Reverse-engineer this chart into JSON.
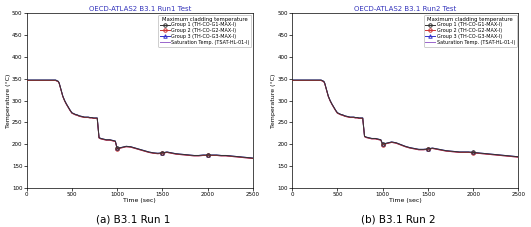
{
  "title1": "OECD-ATLAS2 B3.1 Run1 Test",
  "title2": "OECD-ATLAS2 B3.1 Run2 Test",
  "caption1": "(a) B3.1 Run 1",
  "caption2": "(b) B3.1 Run 2",
  "xlabel": "Time (sec)",
  "ylabel": "Temperature (°C)",
  "title_color": "#3333bb",
  "xlim": [
    0,
    2500
  ],
  "ylim": [
    100,
    500
  ],
  "yticks": [
    100,
    150,
    200,
    250,
    300,
    350,
    400,
    450,
    500
  ],
  "xticks": [
    0,
    500,
    1000,
    1500,
    2000,
    2500
  ],
  "legend_title": "Maximum cladding temperature",
  "background_color": "#ffffff",
  "linewidth": 0.7,
  "markersize": 2.5,
  "run1": {
    "time": [
      0,
      10,
      20,
      30,
      40,
      50,
      60,
      70,
      80,
      100,
      150,
      200,
      250,
      300,
      310,
      320,
      330,
      340,
      350,
      360,
      380,
      400,
      420,
      440,
      460,
      480,
      500,
      520,
      540,
      560,
      580,
      600,
      620,
      640,
      660,
      680,
      700,
      720,
      740,
      760,
      780,
      800,
      820,
      840,
      860,
      880,
      900,
      920,
      940,
      960,
      980,
      1000,
      1020,
      1040,
      1060,
      1080,
      1100,
      1150,
      1200,
      1250,
      1300,
      1350,
      1400,
      1450,
      1500,
      1550,
      1600,
      1650,
      1700,
      1750,
      1800,
      1850,
      1900,
      1950,
      2000,
      2050,
      2100,
      2150,
      2200,
      2250,
      2300,
      2350,
      2400,
      2450,
      2500
    ],
    "group1": [
      347,
      347,
      347,
      347,
      347,
      347,
      347,
      347,
      347,
      347,
      347,
      347,
      347,
      347,
      347,
      347,
      346,
      345,
      344,
      340,
      325,
      310,
      300,
      292,
      285,
      278,
      272,
      270,
      268,
      267,
      265,
      264,
      263,
      262,
      262,
      262,
      261,
      261,
      260,
      260,
      260,
      215,
      213,
      212,
      211,
      210,
      210,
      210,
      209,
      208,
      207,
      190,
      191,
      192,
      193,
      194,
      195,
      194,
      191,
      188,
      185,
      182,
      180,
      179,
      180,
      182,
      180,
      178,
      177,
      176,
      175,
      174,
      174,
      175,
      175,
      175,
      175,
      174,
      174,
      173,
      172,
      171,
      170,
      169,
      168
    ],
    "group2": [
      346,
      346,
      346,
      346,
      346,
      346,
      346,
      346,
      346,
      346,
      346,
      346,
      346,
      346,
      346,
      346,
      345,
      344,
      343,
      339,
      324,
      309,
      299,
      291,
      284,
      277,
      271,
      269,
      267,
      266,
      264,
      263,
      262,
      261,
      261,
      261,
      260,
      260,
      259,
      259,
      259,
      214,
      212,
      211,
      210,
      209,
      209,
      209,
      208,
      207,
      206,
      189,
      190,
      191,
      192,
      193,
      194,
      193,
      190,
      187,
      184,
      181,
      179,
      178,
      179,
      181,
      179,
      177,
      176,
      175,
      174,
      173,
      173,
      174,
      174,
      174,
      174,
      173,
      173,
      172,
      171,
      170,
      169,
      168,
      167
    ],
    "group3": [
      347,
      347,
      347,
      347,
      347,
      347,
      347,
      347,
      347,
      347,
      347,
      347,
      347,
      347,
      347,
      347,
      346,
      345,
      344,
      340,
      325,
      310,
      300,
      292,
      285,
      278,
      272,
      270,
      268,
      267,
      265,
      264,
      263,
      262,
      262,
      262,
      261,
      261,
      260,
      260,
      260,
      215,
      213,
      212,
      211,
      210,
      210,
      210,
      209,
      208,
      207,
      190,
      191,
      192,
      193,
      194,
      195,
      194,
      191,
      188,
      185,
      182,
      180,
      179,
      180,
      182,
      180,
      178,
      177,
      176,
      175,
      174,
      174,
      175,
      175,
      175,
      175,
      174,
      174,
      173,
      172,
      171,
      170,
      169,
      168
    ],
    "sat": [
      346,
      346,
      346,
      346,
      346,
      346,
      346,
      346,
      346,
      346,
      346,
      346,
      346,
      346,
      346,
      346,
      345,
      344,
      343,
      339,
      324,
      309,
      299,
      291,
      284,
      277,
      271,
      269,
      267,
      266,
      264,
      263,
      262,
      261,
      261,
      261,
      260,
      260,
      259,
      259,
      259,
      214,
      212,
      211,
      210,
      209,
      209,
      209,
      208,
      207,
      206,
      189,
      190,
      191,
      192,
      193,
      194,
      193,
      190,
      187,
      184,
      181,
      179,
      178,
      179,
      181,
      179,
      177,
      176,
      175,
      174,
      173,
      173,
      174,
      174,
      174,
      174,
      173,
      173,
      172,
      171,
      170,
      169,
      168,
      167
    ]
  },
  "run2": {
    "time": [
      0,
      10,
      20,
      30,
      40,
      50,
      60,
      70,
      80,
      100,
      150,
      200,
      250,
      300,
      310,
      320,
      330,
      340,
      350,
      360,
      380,
      400,
      420,
      440,
      460,
      480,
      500,
      520,
      540,
      560,
      580,
      600,
      620,
      640,
      660,
      680,
      700,
      720,
      740,
      760,
      780,
      800,
      820,
      840,
      860,
      880,
      900,
      920,
      940,
      960,
      980,
      1000,
      1020,
      1040,
      1060,
      1080,
      1100,
      1150,
      1200,
      1250,
      1300,
      1350,
      1400,
      1450,
      1500,
      1550,
      1600,
      1650,
      1700,
      1750,
      1800,
      1850,
      1900,
      1950,
      2000,
      2050,
      2100,
      2150,
      2200,
      2250,
      2300,
      2350,
      2400,
      2450,
      2500
    ],
    "group1": [
      347,
      347,
      347,
      347,
      347,
      347,
      347,
      347,
      347,
      347,
      347,
      347,
      347,
      347,
      347,
      347,
      346,
      345,
      344,
      340,
      325,
      310,
      300,
      292,
      285,
      278,
      272,
      270,
      268,
      267,
      265,
      264,
      263,
      262,
      262,
      262,
      261,
      261,
      260,
      260,
      260,
      218,
      216,
      215,
      214,
      213,
      213,
      213,
      212,
      211,
      210,
      200,
      201,
      202,
      203,
      204,
      205,
      203,
      199,
      195,
      192,
      190,
      188,
      188,
      189,
      191,
      189,
      187,
      185,
      184,
      183,
      182,
      182,
      182,
      181,
      180,
      179,
      178,
      177,
      176,
      175,
      174,
      173,
      172,
      171
    ],
    "group2": [
      346,
      346,
      346,
      346,
      346,
      346,
      346,
      346,
      346,
      346,
      346,
      346,
      346,
      346,
      346,
      346,
      345,
      344,
      343,
      339,
      324,
      309,
      299,
      291,
      284,
      277,
      271,
      269,
      267,
      266,
      264,
      263,
      262,
      261,
      261,
      261,
      260,
      260,
      259,
      259,
      259,
      217,
      215,
      214,
      213,
      212,
      212,
      212,
      211,
      210,
      209,
      199,
      200,
      201,
      202,
      203,
      204,
      202,
      198,
      194,
      191,
      189,
      187,
      187,
      188,
      190,
      188,
      186,
      184,
      183,
      182,
      181,
      181,
      181,
      180,
      179,
      178,
      177,
      176,
      175,
      174,
      173,
      172,
      171,
      170
    ],
    "group3": [
      347,
      347,
      347,
      347,
      347,
      347,
      347,
      347,
      347,
      347,
      347,
      347,
      347,
      347,
      347,
      347,
      346,
      345,
      344,
      340,
      325,
      310,
      300,
      292,
      285,
      278,
      272,
      270,
      268,
      267,
      265,
      264,
      263,
      262,
      262,
      262,
      261,
      261,
      260,
      260,
      260,
      218,
      216,
      215,
      214,
      213,
      213,
      213,
      212,
      211,
      210,
      200,
      201,
      202,
      203,
      204,
      205,
      203,
      199,
      195,
      192,
      190,
      188,
      188,
      189,
      191,
      189,
      187,
      185,
      184,
      183,
      182,
      182,
      182,
      181,
      180,
      179,
      178,
      177,
      176,
      175,
      174,
      173,
      172,
      171
    ],
    "sat": [
      346,
      346,
      346,
      346,
      346,
      346,
      346,
      346,
      346,
      346,
      346,
      346,
      346,
      346,
      346,
      346,
      345,
      344,
      343,
      339,
      324,
      309,
      299,
      291,
      284,
      277,
      271,
      269,
      267,
      266,
      264,
      263,
      262,
      261,
      261,
      261,
      260,
      260,
      259,
      259,
      259,
      217,
      215,
      214,
      213,
      212,
      212,
      212,
      211,
      210,
      209,
      199,
      200,
      201,
      202,
      203,
      204,
      202,
      198,
      194,
      191,
      189,
      187,
      187,
      188,
      190,
      188,
      186,
      184,
      183,
      182,
      181,
      181,
      181,
      180,
      179,
      178,
      177,
      176,
      175,
      174,
      173,
      172,
      171,
      170
    ]
  },
  "marker_times": [
    1000,
    1500,
    2000
  ],
  "g1_color": "#333333",
  "g2_color": "#cc3333",
  "g3_color": "#3333cc",
  "sat_color": "#9966cc"
}
